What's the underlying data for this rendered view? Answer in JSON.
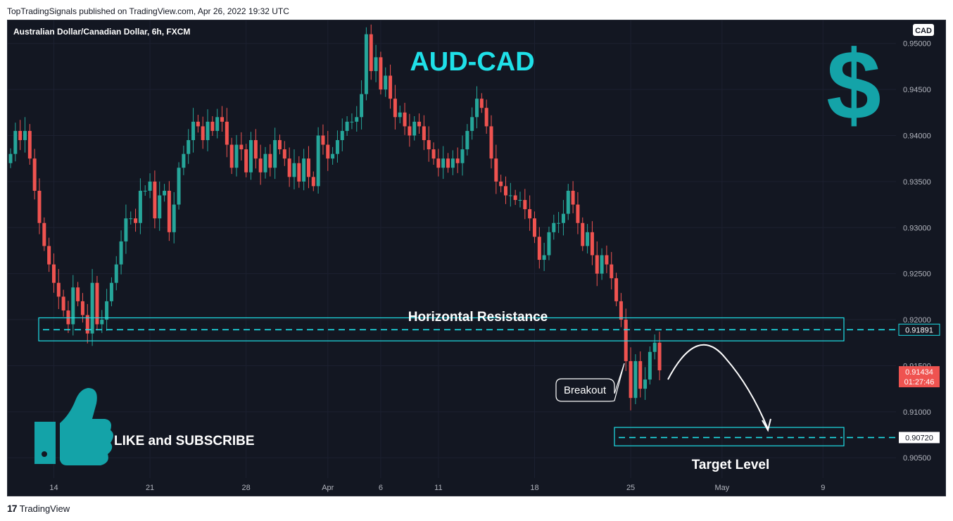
{
  "header": {
    "published": "TopTradingSignals published on TradingView.com, Apr 26, 2022 19:32 UTC"
  },
  "symbol": {
    "title": "Australian Dollar/Canadian Dollar, 6h, FXCM",
    "currency": "CAD"
  },
  "overlay": {
    "pair_title": "AUD-CAD",
    "resistance_label": "Horizontal Resistance",
    "breakout_label": "Breakout",
    "target_label": "Target Level",
    "cta_label": "LIKE and SUBSCRIBE",
    "dollar_glyph": "$"
  },
  "price_tags": {
    "resistance": "0.91891",
    "current": "0.91434",
    "countdown": "01:27:46",
    "target": "0.90720"
  },
  "footer": {
    "brand": "TradingView",
    "logo_glyph": "17"
  },
  "colors": {
    "up": "#26a69a",
    "down": "#ef5350",
    "accent": "#1fe0e8",
    "background": "#131722",
    "axis_text": "#b2b5be",
    "dollar": "#14a3a8"
  },
  "icons": [
    "thumbs-up-icon",
    "dollar-icon",
    "tradingview-logo-icon"
  ],
  "chart_data": {
    "type": "candlestick",
    "title": "Australian Dollar/Canadian Dollar, 6h, FXCM",
    "ylim": [
      0.9028,
      0.9525
    ],
    "yticks": [
      0.905,
      0.91,
      0.915,
      0.92,
      0.925,
      0.93,
      0.935,
      0.94,
      0.945,
      0.95
    ],
    "ytick_labels": [
      "0.90500",
      "0.91000",
      "0.91500",
      "0.92000",
      "0.92500",
      "0.93000",
      "0.93500",
      "0.94000",
      "0.94500",
      "0.95000"
    ],
    "xticks": [
      {
        "label": "14",
        "index": 9
      },
      {
        "label": "21",
        "index": 29
      },
      {
        "label": "28",
        "index": 49
      },
      {
        "label": "Apr",
        "index": 66
      },
      {
        "label": "6",
        "index": 77
      },
      {
        "label": "11",
        "index": 89
      },
      {
        "label": "18",
        "index": 109
      },
      {
        "label": "25",
        "index": 129
      },
      {
        "label": "May",
        "index": 148
      },
      {
        "label": "9",
        "index": 169
      }
    ],
    "resistance_level": 0.91891,
    "resistance_zone": [
      0.9177,
      0.9202
    ],
    "target_level": 0.9072,
    "target_zone": [
      0.9063,
      0.9083
    ],
    "current_price": 0.91434,
    "close": [
      0.938,
      0.9405,
      0.9395,
      0.9405,
      0.9375,
      0.934,
      0.9305,
      0.928,
      0.926,
      0.924,
      0.9225,
      0.921,
      0.9195,
      0.9235,
      0.922,
      0.9205,
      0.9185,
      0.924,
      0.9195,
      0.92,
      0.922,
      0.924,
      0.926,
      0.9285,
      0.931,
      0.931,
      0.9305,
      0.934,
      0.934,
      0.935,
      0.931,
      0.9335,
      0.934,
      0.9295,
      0.9325,
      0.9365,
      0.938,
      0.9395,
      0.9415,
      0.941,
      0.9395,
      0.9415,
      0.9405,
      0.942,
      0.9415,
      0.939,
      0.9365,
      0.939,
      0.9385,
      0.936,
      0.9395,
      0.9375,
      0.936,
      0.938,
      0.9365,
      0.9395,
      0.9385,
      0.9375,
      0.9355,
      0.937,
      0.935,
      0.9375,
      0.9355,
      0.9345,
      0.94,
      0.939,
      0.9375,
      0.938,
      0.9395,
      0.9405,
      0.9415,
      0.9415,
      0.942,
      0.9445,
      0.951,
      0.947,
      0.9485,
      0.945,
      0.9465,
      0.944,
      0.942,
      0.9425,
      0.941,
      0.94,
      0.9415,
      0.941,
      0.9395,
      0.9385,
      0.9375,
      0.9365,
      0.9375,
      0.9365,
      0.9375,
      0.937,
      0.9385,
      0.9405,
      0.942,
      0.944,
      0.943,
      0.941,
      0.9375,
      0.935,
      0.9345,
      0.9335,
      0.9335,
      0.933,
      0.933,
      0.932,
      0.931,
      0.929,
      0.9265,
      0.927,
      0.9295,
      0.9305,
      0.9305,
      0.9315,
      0.934,
      0.9325,
      0.9305,
      0.928,
      0.9295,
      0.927,
      0.925,
      0.927,
      0.926,
      0.9245,
      0.922,
      0.92,
      0.9155,
      0.9115,
      0.9155,
      0.9125,
      0.9135,
      0.9165,
      0.9175,
      0.9145
    ]
  }
}
